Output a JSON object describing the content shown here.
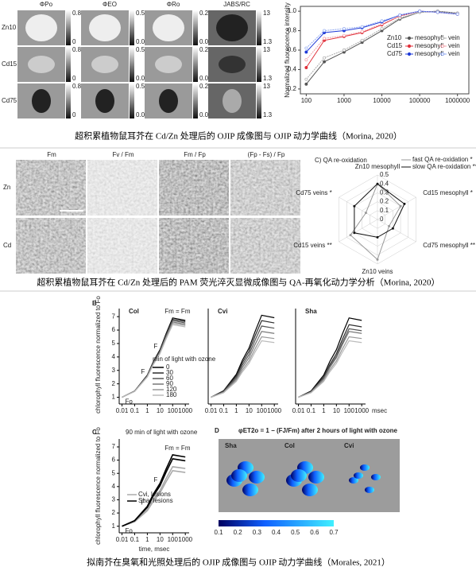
{
  "figures": [
    {
      "columns": [
        "ΦPo",
        "ΦEO",
        "ΦRo",
        "JABS/RC"
      ],
      "rows": [
        "Zn10",
        "Cd15",
        "Cd75"
      ],
      "colorbars": [
        [
          0.8,
          0
        ],
        [
          0.55,
          0.02
        ],
        [
          0.22,
          0.02
        ],
        [
          13,
          1.3
        ]
      ],
      "chart": {
        "type": "line",
        "y_label": "Normalized fluorescence intensity",
        "log_x": true,
        "xlim": [
          70,
          2000000
        ],
        "ylim": [
          0.15,
          1.05
        ],
        "xticks": [
          100,
          1000,
          10000,
          100000,
          1000000
        ],
        "yticks": [
          0.2,
          0.4,
          0.6,
          0.8,
          {
            "value": 1,
            "label": "1.0"
          }
        ],
        "x": [
          100,
          300,
          1000,
          3000,
          10000,
          30000,
          100000,
          300000,
          1000000
        ],
        "groups": [
          {
            "label": "Zn10",
            "series": [
              {
                "name": "mesophyll",
                "color": "#555555",
                "values": [
                  0.25,
                  0.48,
                  0.58,
                  0.68,
                  0.8,
                  0.92,
                  0.99,
                  1.0,
                  0.98
                ]
              },
              {
                "name": "vein",
                "color": "#aaaaaa",
                "values": [
                  0.3,
                  0.52,
                  0.6,
                  0.7,
                  0.82,
                  0.93,
                  0.99,
                  1.0,
                  0.98
                ]
              }
            ]
          },
          {
            "label": "Cd15",
            "series": [
              {
                "name": "mesophyll",
                "color": "#e0303a",
                "values": [
                  0.42,
                  0.7,
                  0.74,
                  0.78,
                  0.86,
                  0.95,
                  1.0,
                  0.99,
                  0.97
                ]
              },
              {
                "name": "vein",
                "color": "#f0a0a8",
                "values": [
                  0.5,
                  0.72,
                  0.75,
                  0.79,
                  0.87,
                  0.95,
                  1.0,
                  0.99,
                  0.97
                ]
              }
            ]
          },
          {
            "label": "Cd75",
            "series": [
              {
                "name": "mesophyll",
                "color": "#1e3ad8",
                "values": [
                  0.58,
                  0.78,
                  0.8,
                  0.83,
                  0.89,
                  0.96,
                  1.0,
                  0.99,
                  0.97
                ]
              },
              {
                "name": "vein",
                "color": "#8fa8f0",
                "values": [
                  0.62,
                  0.8,
                  0.82,
                  0.84,
                  0.9,
                  0.96,
                  1.0,
                  0.99,
                  0.97
                ]
              }
            ]
          }
        ]
      },
      "caption": "超积累植物鼠耳芥在 Cd/Zn 处理后的 OJIP 成像图与 OJIP 动力学曲线（Morina, 2020）"
    },
    {
      "columns": [
        "Fm",
        "Fv / Fm",
        "Fm / Fp",
        "(Fp - Fs) / Fp"
      ],
      "rows": [
        "Zn",
        "Cd"
      ],
      "radar": {
        "title": "C) QA re-oxidation",
        "axes": [
          "Zn10 mesophyll",
          "Cd15 mesophyll *",
          "Cd75 mesophyll **",
          "Zn10 veins",
          "Cd15 veins **",
          "Cd75 veins *"
        ],
        "rlim": [
          0,
          0.5
        ],
        "rticks": [
          0,
          0.1,
          0.2,
          0.3,
          0.4,
          0.5
        ],
        "series": [
          {
            "name": "fast QA re-oxidation *",
            "color": "#999999",
            "values": [
              0.4,
              0.3,
              0.15,
              0.45,
              0.35,
              0.15
            ]
          },
          {
            "name": "slow QA re-oxidation **",
            "color": "#111111",
            "values": [
              0.4,
              0.35,
              0.2,
              0.2,
              0.3,
              0.3
            ]
          }
        ]
      },
      "caption": "超积累植物鼠耳芥在 Cd/Zn 处理后的 PAM 荧光淬灭显微成像图与 QA-再氧化动力学分析（Morina, 2020）"
    },
    {
      "B": {
        "label": "B",
        "type": "line",
        "log_x": true,
        "y_label": "chlorophyll fluorescence normalized to Fo",
        "x_unit": "msec",
        "xlim": [
          0.006,
          2000
        ],
        "ylim": [
          0.5,
          7.6
        ],
        "xticks": [
          0.01,
          0.1,
          1,
          10,
          100,
          1000
        ],
        "yticks": [
          1,
          2,
          3,
          4,
          5,
          6,
          7
        ],
        "x": [
          0.01,
          0.1,
          1,
          3,
          10,
          30,
          100,
          1000
        ],
        "legend_title": "min of light with ozone",
        "legend_values": [
          0,
          30,
          60,
          90,
          120,
          180
        ],
        "colors": [
          "#000000",
          "#2a2a2a",
          "#555555",
          "#777777",
          "#999999",
          "#bbbbbb"
        ],
        "fm": "Fm = Fm",
        "fj": "F",
        "fi": "F",
        "fo": "Fo",
        "panels": [
          {
            "name": "Col",
            "curves": [
              [
                1,
                1.47,
                2.65,
                3.66,
                4.54,
                5.72,
                6.9,
                6.72
              ],
              [
                1,
                1.46,
                2.62,
                3.61,
                4.48,
                5.64,
                6.8,
                6.63
              ],
              [
                1,
                1.46,
                2.6,
                3.57,
                4.42,
                5.56,
                6.7,
                6.53
              ],
              [
                1,
                1.45,
                2.57,
                3.52,
                4.36,
                5.48,
                6.6,
                6.43
              ],
              [
                1,
                1.44,
                2.54,
                3.48,
                4.3,
                5.4,
                6.5,
                6.34
              ],
              [
                1,
                1.43,
                2.51,
                3.43,
                4.24,
                5.32,
                6.4,
                6.24
              ]
            ]
          },
          {
            "name": "Cvi",
            "curves": [
              [
                1,
                1.49,
                2.71,
                3.75,
                4.66,
                5.88,
                7.1,
                6.92
              ],
              [
                1,
                1.46,
                2.6,
                3.57,
                4.42,
                5.56,
                6.7,
                6.53
              ],
              [
                1,
                1.42,
                2.48,
                3.39,
                4.18,
                5.24,
                6.3,
                6.14
              ],
              [
                1,
                1.39,
                2.37,
                3.21,
                3.94,
                4.92,
                5.9,
                5.75
              ],
              [
                1,
                1.36,
                2.26,
                3.03,
                3.7,
                4.6,
                5.5,
                5.37
              ],
              [
                1,
                1.34,
                2.18,
                2.89,
                3.52,
                4.36,
                5.2,
                5.07
              ]
            ]
          },
          {
            "name": "Sha",
            "curves": [
              [
                1,
                1.47,
                2.65,
                3.66,
                4.54,
                5.72,
                6.9,
                6.72
              ],
              [
                1,
                1.43,
                2.51,
                3.43,
                4.24,
                5.32,
                6.4,
                6.24
              ],
              [
                1,
                1.41,
                2.43,
                3.3,
                4.06,
                5.08,
                6.1,
                5.95
              ],
              [
                1,
                1.39,
                2.37,
                3.21,
                3.94,
                4.92,
                5.9,
                5.75
              ],
              [
                1,
                1.36,
                2.26,
                3.03,
                3.7,
                4.6,
                5.5,
                5.37
              ],
              [
                1,
                1.34,
                2.18,
                2.89,
                3.52,
                4.36,
                5.2,
                5.07
              ]
            ]
          }
        ]
      },
      "C": {
        "label": "C",
        "type": "line",
        "log_x": true,
        "title": "90 min of light with ozone",
        "x_label": "time, msec",
        "y_label": "chlorophyll fluorescence normalized to Fo",
        "xlim": [
          0.006,
          2000
        ],
        "ylim": [
          0.5,
          7.6
        ],
        "xticks": [
          0.01,
          0.1,
          1,
          10,
          100,
          1000
        ],
        "yticks": [
          1,
          2,
          3,
          4,
          5,
          6,
          7
        ],
        "x": [
          0.01,
          0.1,
          1,
          3,
          10,
          30,
          100,
          1000
        ],
        "fm": "Fm = Fm",
        "fj": "F",
        "fi": "F",
        "fo": "Fo",
        "series": [
          {
            "name": "Cvi, lesions",
            "color": "#aaaaaa",
            "curves": [
              [
                1,
                1.36,
                2.26,
                3.03,
                3.7,
                4.6,
                5.5,
                5.37
              ],
              [
                1,
                1.34,
                2.18,
                2.89,
                3.52,
                4.36,
                5.2,
                5.07
              ]
            ]
          },
          {
            "name": "Sha, lesions",
            "color": "#000000",
            "curves": [
              [
                1,
                1.43,
                2.51,
                3.43,
                4.24,
                5.32,
                6.4,
                6.24
              ],
              [
                1,
                1.41,
                2.43,
                3.3,
                4.06,
                5.08,
                6.1,
                5.95
              ]
            ]
          }
        ]
      },
      "D": {
        "label": "D",
        "title": "φET2o = 1 − (FJ/Fm) after 2 hours of light with ozone",
        "plants": [
          "Sha",
          "Col",
          "Cvi"
        ],
        "colorbar_ticks": [
          0.1,
          0.2,
          0.3,
          0.4,
          0.5,
          0.6,
          0.7
        ]
      },
      "caption": "拟南芥在臭氧和光照处理后的 OJIP 成像图与 OJIP 动力学曲线（Morales, 2021）"
    }
  ]
}
